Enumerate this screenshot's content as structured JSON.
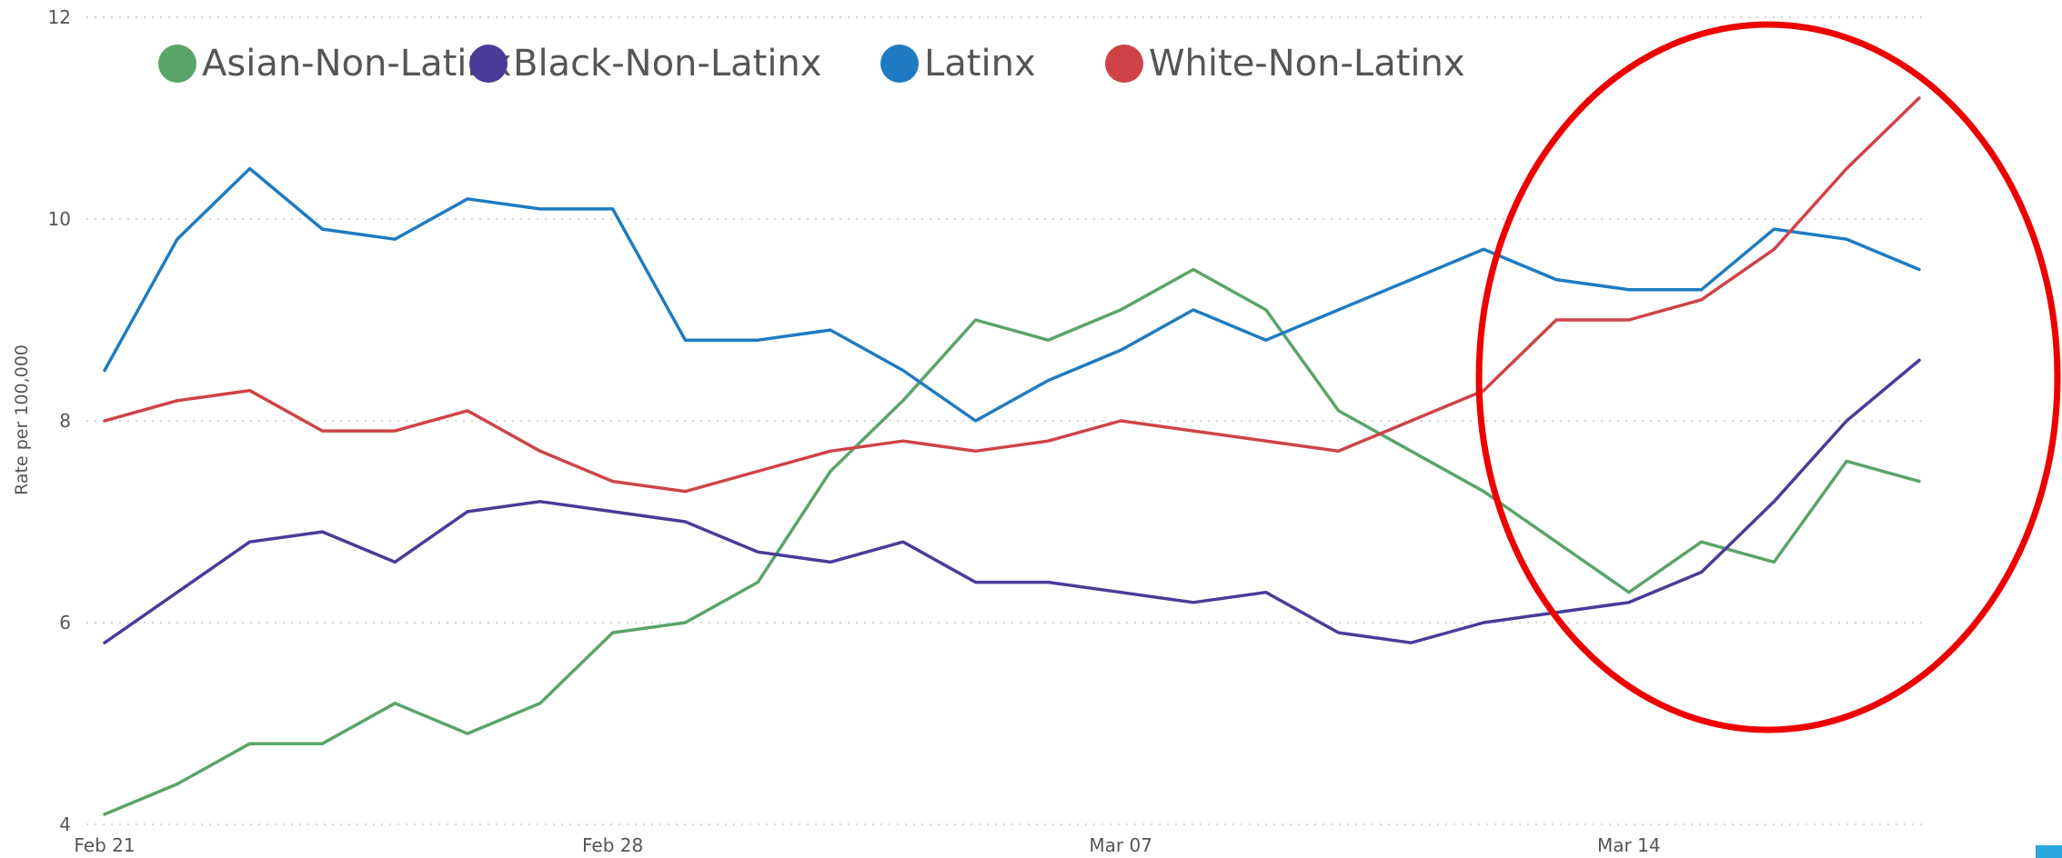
{
  "chart_data": {
    "type": "line",
    "title": "",
    "xlabel": "",
    "ylabel": "Rate per 100,000",
    "ylim": [
      4,
      12
    ],
    "y_ticks": [
      "4",
      "6",
      "8",
      "10",
      "12"
    ],
    "x_tick_labels": [
      "Feb 21",
      "Feb 28",
      "Mar 07",
      "Mar 14"
    ],
    "x_tick_indices": [
      0,
      7,
      14,
      21
    ],
    "grid": "horizontal-dotted",
    "legend_position": "top-left",
    "categories": [
      "Feb 21",
      "Feb 22",
      "Feb 23",
      "Feb 24",
      "Feb 25",
      "Feb 26",
      "Feb 27",
      "Feb 28",
      "Mar 01",
      "Mar 02",
      "Mar 03",
      "Mar 04",
      "Mar 05",
      "Mar 06",
      "Mar 07",
      "Mar 08",
      "Mar 09",
      "Mar 10",
      "Mar 11",
      "Mar 12",
      "Mar 13",
      "Mar 14",
      "Mar 15",
      "Mar 16",
      "Mar 17",
      "Mar 18"
    ],
    "series": [
      {
        "name": "Asian-Non-Latinx",
        "color": "#5aa469",
        "values": [
          4.1,
          4.4,
          4.8,
          4.8,
          5.2,
          4.9,
          5.2,
          5.9,
          6.0,
          6.4,
          7.5,
          8.2,
          9.0,
          8.8,
          9.1,
          9.5,
          9.1,
          8.1,
          7.7,
          7.3,
          6.8,
          6.3,
          6.8,
          6.6,
          7.6,
          7.4
        ]
      },
      {
        "name": "Black-Non-Latinx",
        "color": "#4b3b99",
        "values": [
          5.8,
          6.3,
          6.8,
          6.9,
          6.6,
          7.1,
          7.2,
          7.1,
          7.0,
          6.7,
          6.6,
          6.8,
          6.4,
          6.4,
          6.3,
          6.2,
          6.3,
          5.9,
          5.8,
          6.0,
          6.1,
          6.2,
          6.5,
          7.2,
          8.0,
          8.6
        ]
      },
      {
        "name": "Latinx",
        "color": "#1f7bc1",
        "values": [
          8.5,
          9.8,
          10.5,
          9.9,
          9.8,
          10.2,
          10.1,
          10.1,
          8.8,
          8.8,
          8.9,
          8.5,
          8.0,
          8.4,
          8.7,
          9.1,
          8.8,
          9.1,
          9.4,
          9.7,
          9.4,
          9.3,
          9.3,
          9.9,
          9.8,
          9.5
        ]
      },
      {
        "name": "White-Non-Latinx",
        "color": "#cf4346",
        "values": [
          8.0,
          8.2,
          8.3,
          7.9,
          7.9,
          8.1,
          7.7,
          7.4,
          7.3,
          7.5,
          7.7,
          7.8,
          7.7,
          7.8,
          8.0,
          7.9,
          7.8,
          7.7,
          8.0,
          8.3,
          9.0,
          9.0,
          9.2,
          9.7,
          10.5,
          11.2
        ]
      }
    ],
    "annotation": {
      "type": "ellipse",
      "color": "#ee0000",
      "highlight_range": [
        "Mar 13",
        "Mar 18"
      ]
    }
  }
}
